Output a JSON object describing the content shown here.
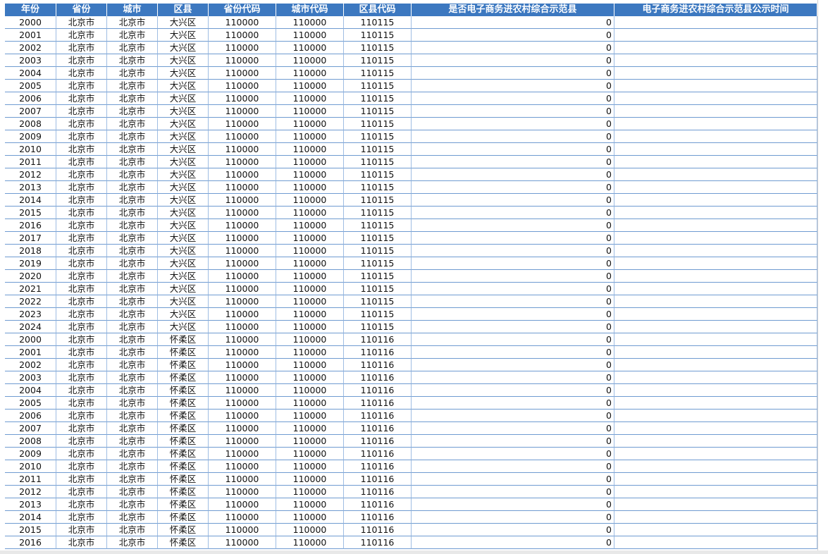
{
  "table": {
    "columns": [
      "年份",
      "省份",
      "城市",
      "区县",
      "省份代码",
      "城市代码",
      "区县代码",
      "是否电子商务进农村综合示范县",
      "电子商务进农村综合示范县公示时间"
    ],
    "rows": [
      [
        2000,
        "北京市",
        "北京市",
        "大兴区",
        110000,
        110000,
        110115,
        0
      ],
      [
        2001,
        "北京市",
        "北京市",
        "大兴区",
        110000,
        110000,
        110115,
        0
      ],
      [
        2002,
        "北京市",
        "北京市",
        "大兴区",
        110000,
        110000,
        110115,
        0
      ],
      [
        2003,
        "北京市",
        "北京市",
        "大兴区",
        110000,
        110000,
        110115,
        0
      ],
      [
        2004,
        "北京市",
        "北京市",
        "大兴区",
        110000,
        110000,
        110115,
        0
      ],
      [
        2005,
        "北京市",
        "北京市",
        "大兴区",
        110000,
        110000,
        110115,
        0
      ],
      [
        2006,
        "北京市",
        "北京市",
        "大兴区",
        110000,
        110000,
        110115,
        0
      ],
      [
        2007,
        "北京市",
        "北京市",
        "大兴区",
        110000,
        110000,
        110115,
        0
      ],
      [
        2008,
        "北京市",
        "北京市",
        "大兴区",
        110000,
        110000,
        110115,
        0
      ],
      [
        2009,
        "北京市",
        "北京市",
        "大兴区",
        110000,
        110000,
        110115,
        0
      ],
      [
        2010,
        "北京市",
        "北京市",
        "大兴区",
        110000,
        110000,
        110115,
        0
      ],
      [
        2011,
        "北京市",
        "北京市",
        "大兴区",
        110000,
        110000,
        110115,
        0
      ],
      [
        2012,
        "北京市",
        "北京市",
        "大兴区",
        110000,
        110000,
        110115,
        0
      ],
      [
        2013,
        "北京市",
        "北京市",
        "大兴区",
        110000,
        110000,
        110115,
        0
      ],
      [
        2014,
        "北京市",
        "北京市",
        "大兴区",
        110000,
        110000,
        110115,
        0
      ],
      [
        2015,
        "北京市",
        "北京市",
        "大兴区",
        110000,
        110000,
        110115,
        0
      ],
      [
        2016,
        "北京市",
        "北京市",
        "大兴区",
        110000,
        110000,
        110115,
        0
      ],
      [
        2017,
        "北京市",
        "北京市",
        "大兴区",
        110000,
        110000,
        110115,
        0
      ],
      [
        2018,
        "北京市",
        "北京市",
        "大兴区",
        110000,
        110000,
        110115,
        0
      ],
      [
        2019,
        "北京市",
        "北京市",
        "大兴区",
        110000,
        110000,
        110115,
        0
      ],
      [
        2020,
        "北京市",
        "北京市",
        "大兴区",
        110000,
        110000,
        110115,
        0
      ],
      [
        2021,
        "北京市",
        "北京市",
        "大兴区",
        110000,
        110000,
        110115,
        0
      ],
      [
        2022,
        "北京市",
        "北京市",
        "大兴区",
        110000,
        110000,
        110115,
        0
      ],
      [
        2023,
        "北京市",
        "北京市",
        "大兴区",
        110000,
        110000,
        110115,
        0
      ],
      [
        2024,
        "北京市",
        "北京市",
        "大兴区",
        110000,
        110000,
        110115,
        0
      ],
      [
        2000,
        "北京市",
        "北京市",
        "怀柔区",
        110000,
        110000,
        110116,
        0
      ],
      [
        2001,
        "北京市",
        "北京市",
        "怀柔区",
        110000,
        110000,
        110116,
        0
      ],
      [
        2002,
        "北京市",
        "北京市",
        "怀柔区",
        110000,
        110000,
        110116,
        0
      ],
      [
        2003,
        "北京市",
        "北京市",
        "怀柔区",
        110000,
        110000,
        110116,
        0
      ],
      [
        2004,
        "北京市",
        "北京市",
        "怀柔区",
        110000,
        110000,
        110116,
        0
      ],
      [
        2005,
        "北京市",
        "北京市",
        "怀柔区",
        110000,
        110000,
        110116,
        0
      ],
      [
        2006,
        "北京市",
        "北京市",
        "怀柔区",
        110000,
        110000,
        110116,
        0
      ],
      [
        2007,
        "北京市",
        "北京市",
        "怀柔区",
        110000,
        110000,
        110116,
        0
      ],
      [
        2008,
        "北京市",
        "北京市",
        "怀柔区",
        110000,
        110000,
        110116,
        0
      ],
      [
        2009,
        "北京市",
        "北京市",
        "怀柔区",
        110000,
        110000,
        110116,
        0
      ],
      [
        2010,
        "北京市",
        "北京市",
        "怀柔区",
        110000,
        110000,
        110116,
        0
      ],
      [
        2011,
        "北京市",
        "北京市",
        "怀柔区",
        110000,
        110000,
        110116,
        0
      ],
      [
        2012,
        "北京市",
        "北京市",
        "怀柔区",
        110000,
        110000,
        110116,
        0
      ],
      [
        2013,
        "北京市",
        "北京市",
        "怀柔区",
        110000,
        110000,
        110116,
        0
      ],
      [
        2014,
        "北京市",
        "北京市",
        "怀柔区",
        110000,
        110000,
        110116,
        0
      ],
      [
        2015,
        "北京市",
        "北京市",
        "怀柔区",
        110000,
        110000,
        110116,
        0
      ],
      [
        2016,
        "北京市",
        "北京市",
        "怀柔区",
        110000,
        110000,
        110116,
        0
      ]
    ]
  }
}
